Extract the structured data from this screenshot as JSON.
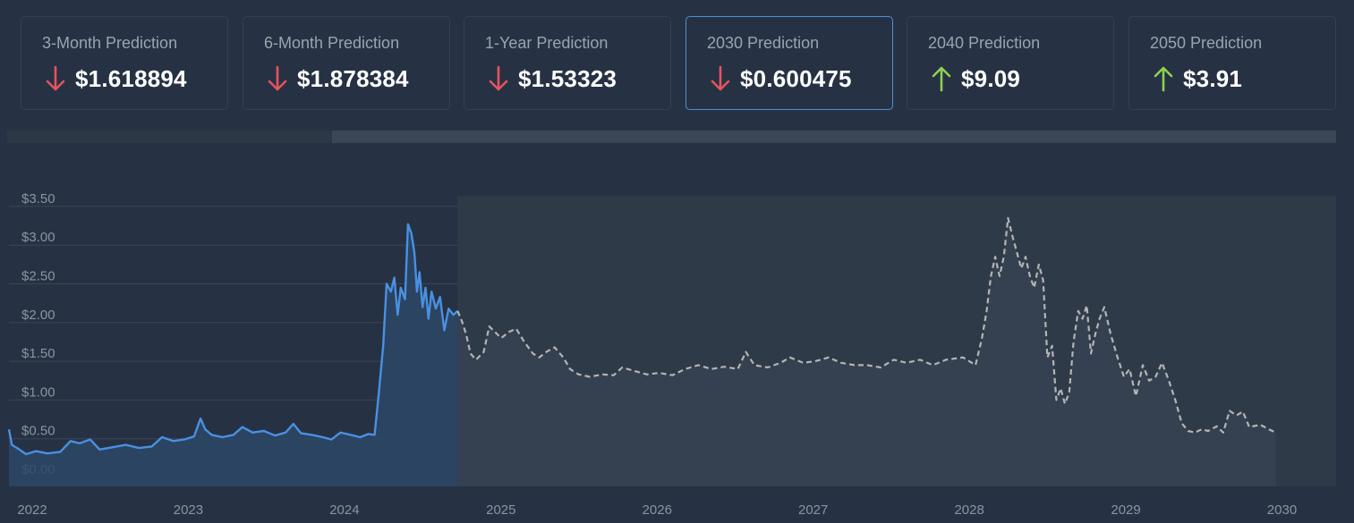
{
  "cards": [
    {
      "title": "3-Month Prediction",
      "value": "$1.618894",
      "trend": "down",
      "active": false
    },
    {
      "title": "6-Month Prediction",
      "value": "$1.878384",
      "trend": "down",
      "active": false
    },
    {
      "title": "1-Year Prediction",
      "value": "$1.53323",
      "trend": "down",
      "active": false
    },
    {
      "title": "2030 Prediction",
      "value": "$0.600475",
      "trend": "down",
      "active": true
    },
    {
      "title": "2040 Prediction",
      "value": "$9.09",
      "trend": "up",
      "active": false
    },
    {
      "title": "2050 Prediction",
      "value": "$3.91",
      "trend": "up",
      "active": false
    }
  ],
  "colors": {
    "background": "#263244",
    "down": "#e5535d",
    "up": "#8fd14f",
    "historical_line": "#4a90e2",
    "prediction_line": "#b4b4b4",
    "active_border": "#4d8fd4",
    "gridline": "#3a4655",
    "label": "#8a949f"
  },
  "chart_data": {
    "type": "line",
    "title": "",
    "xlabel": "",
    "ylabel": "",
    "ylim": [
      0,
      3.5
    ],
    "xlim": [
      "2022-01-01",
      "2030-07-01"
    ],
    "y_ticks": [
      "$0.00",
      "$0.50",
      "$1.00",
      "$1.50",
      "$2.00",
      "$2.50",
      "$3.00",
      "$3.50"
    ],
    "x_ticks": [
      "2022",
      "2023",
      "2024",
      "2025",
      "2026",
      "2027",
      "2028",
      "2029",
      "2030"
    ],
    "grid": true,
    "series": [
      {
        "style": "solid",
        "fill": true,
        "points": [
          [
            "2022-01-01",
            0.62
          ],
          [
            "2022-01-08",
            0.42
          ],
          [
            "2022-01-20",
            0.38
          ],
          [
            "2022-02-10",
            0.3
          ],
          [
            "2022-03-05",
            0.34
          ],
          [
            "2022-04-01",
            0.31
          ],
          [
            "2022-05-01",
            0.33
          ],
          [
            "2022-05-25",
            0.47
          ],
          [
            "2022-06-15",
            0.44
          ],
          [
            "2022-07-10",
            0.49
          ],
          [
            "2022-08-01",
            0.36
          ],
          [
            "2022-09-01",
            0.39
          ],
          [
            "2022-10-01",
            0.42
          ],
          [
            "2022-11-01",
            0.38
          ],
          [
            "2022-12-01",
            0.4
          ],
          [
            "2022-12-25",
            0.52
          ],
          [
            "2023-01-20",
            0.47
          ],
          [
            "2023-02-15",
            0.49
          ],
          [
            "2023-03-10",
            0.53
          ],
          [
            "2023-03-25",
            0.76
          ],
          [
            "2023-04-05",
            0.62
          ],
          [
            "2023-04-20",
            0.55
          ],
          [
            "2023-05-15",
            0.52
          ],
          [
            "2023-06-10",
            0.55
          ],
          [
            "2023-07-01",
            0.65
          ],
          [
            "2023-07-25",
            0.58
          ],
          [
            "2023-08-20",
            0.6
          ],
          [
            "2023-09-15",
            0.54
          ],
          [
            "2023-10-10",
            0.58
          ],
          [
            "2023-10-28",
            0.69
          ],
          [
            "2023-11-15",
            0.57
          ],
          [
            "2023-12-10",
            0.55
          ],
          [
            "2024-01-05",
            0.52
          ],
          [
            "2024-01-25",
            0.49
          ],
          [
            "2024-02-15",
            0.58
          ],
          [
            "2024-03-10",
            0.55
          ],
          [
            "2024-04-01",
            0.52
          ],
          [
            "2024-04-20",
            0.56
          ],
          [
            "2024-05-05",
            0.55
          ],
          [
            "2024-05-15",
            1.1
          ],
          [
            "2024-05-25",
            1.7
          ],
          [
            "2024-06-02",
            2.5
          ],
          [
            "2024-06-12",
            2.4
          ],
          [
            "2024-06-20",
            2.58
          ],
          [
            "2024-06-28",
            2.1
          ],
          [
            "2024-07-05",
            2.45
          ],
          [
            "2024-07-15",
            2.3
          ],
          [
            "2024-07-22",
            3.27
          ],
          [
            "2024-07-30",
            3.15
          ],
          [
            "2024-08-06",
            2.9
          ],
          [
            "2024-08-12",
            2.4
          ],
          [
            "2024-08-18",
            2.65
          ],
          [
            "2024-08-25",
            2.2
          ],
          [
            "2024-09-01",
            2.45
          ],
          [
            "2024-09-08",
            2.05
          ],
          [
            "2024-09-15",
            2.4
          ],
          [
            "2024-09-25",
            2.18
          ],
          [
            "2024-10-05",
            2.33
          ],
          [
            "2024-10-15",
            1.9
          ],
          [
            "2024-10-25",
            2.18
          ],
          [
            "2024-11-05",
            2.1
          ],
          [
            "2024-11-15",
            2.15
          ]
        ]
      },
      {
        "style": "dashed",
        "fill": true,
        "points": [
          [
            "2024-11-15",
            2.15
          ],
          [
            "2024-11-25",
            2.02
          ],
          [
            "2024-12-05",
            1.85
          ],
          [
            "2024-12-15",
            1.6
          ],
          [
            "2024-12-28",
            1.52
          ],
          [
            "2025-01-15",
            1.62
          ],
          [
            "2025-01-28",
            1.95
          ],
          [
            "2025-02-10",
            1.88
          ],
          [
            "2025-02-25",
            1.8
          ],
          [
            "2025-03-15",
            1.88
          ],
          [
            "2025-04-01",
            1.92
          ],
          [
            "2025-04-20",
            1.75
          ],
          [
            "2025-05-10",
            1.6
          ],
          [
            "2025-05-25",
            1.55
          ],
          [
            "2025-06-10",
            1.62
          ],
          [
            "2025-06-30",
            1.68
          ],
          [
            "2025-07-20",
            1.55
          ],
          [
            "2025-08-05",
            1.4
          ],
          [
            "2025-08-25",
            1.33
          ],
          [
            "2025-09-20",
            1.3
          ],
          [
            "2025-10-20",
            1.33
          ],
          [
            "2025-11-15",
            1.32
          ],
          [
            "2025-12-05",
            1.42
          ],
          [
            "2025-12-30",
            1.38
          ],
          [
            "2026-02-01",
            1.33
          ],
          [
            "2026-03-01",
            1.35
          ],
          [
            "2026-04-01",
            1.32
          ],
          [
            "2026-05-01",
            1.4
          ],
          [
            "2026-06-01",
            1.45
          ],
          [
            "2026-07-01",
            1.4
          ],
          [
            "2026-08-01",
            1.43
          ],
          [
            "2026-09-01",
            1.4
          ],
          [
            "2026-09-20",
            1.62
          ],
          [
            "2026-10-10",
            1.45
          ],
          [
            "2026-11-10",
            1.42
          ],
          [
            "2026-12-10",
            1.48
          ],
          [
            "2027-01-01",
            1.55
          ],
          [
            "2027-02-01",
            1.48
          ],
          [
            "2027-03-01",
            1.5
          ],
          [
            "2027-04-01",
            1.55
          ],
          [
            "2027-05-01",
            1.48
          ],
          [
            "2027-06-01",
            1.45
          ],
          [
            "2027-07-01",
            1.45
          ],
          [
            "2027-08-01",
            1.42
          ],
          [
            "2027-09-01",
            1.52
          ],
          [
            "2027-10-01",
            1.48
          ],
          [
            "2027-11-01",
            1.52
          ],
          [
            "2027-12-01",
            1.45
          ],
          [
            "2028-01-01",
            1.52
          ],
          [
            "2028-02-10",
            1.55
          ],
          [
            "2028-03-10",
            1.45
          ],
          [
            "2028-03-25",
            1.8
          ],
          [
            "2028-04-05",
            2.15
          ],
          [
            "2028-04-15",
            2.6
          ],
          [
            "2028-04-25",
            2.85
          ],
          [
            "2028-05-05",
            2.6
          ],
          [
            "2028-05-15",
            2.85
          ],
          [
            "2028-05-25",
            3.35
          ],
          [
            "2028-06-05",
            3.1
          ],
          [
            "2028-06-15",
            2.9
          ],
          [
            "2028-06-25",
            2.7
          ],
          [
            "2028-07-05",
            2.85
          ],
          [
            "2028-07-15",
            2.6
          ],
          [
            "2028-07-25",
            2.45
          ],
          [
            "2028-08-05",
            2.75
          ],
          [
            "2028-08-15",
            2.55
          ],
          [
            "2028-08-25",
            1.55
          ],
          [
            "2028-09-05",
            1.7
          ],
          [
            "2028-09-15",
            1.0
          ],
          [
            "2028-09-25",
            1.15
          ],
          [
            "2028-10-05",
            0.95
          ],
          [
            "2028-10-15",
            1.1
          ],
          [
            "2028-10-25",
            1.75
          ],
          [
            "2028-11-05",
            2.15
          ],
          [
            "2028-11-15",
            2.05
          ],
          [
            "2028-11-25",
            2.22
          ],
          [
            "2028-12-05",
            1.6
          ],
          [
            "2028-12-15",
            1.85
          ],
          [
            "2028-12-25",
            2.05
          ],
          [
            "2029-01-05",
            2.2
          ],
          [
            "2029-01-20",
            1.85
          ],
          [
            "2029-02-05",
            1.55
          ],
          [
            "2029-02-20",
            1.3
          ],
          [
            "2029-03-05",
            1.4
          ],
          [
            "2029-03-20",
            1.05
          ],
          [
            "2029-04-05",
            1.45
          ],
          [
            "2029-04-20",
            1.25
          ],
          [
            "2029-05-05",
            1.3
          ],
          [
            "2029-05-20",
            1.48
          ],
          [
            "2029-06-05",
            1.25
          ],
          [
            "2029-06-20",
            1.0
          ],
          [
            "2029-07-05",
            0.7
          ],
          [
            "2029-07-20",
            0.6
          ],
          [
            "2029-08-05",
            0.58
          ],
          [
            "2029-08-20",
            0.62
          ],
          [
            "2029-09-05",
            0.6
          ],
          [
            "2029-09-25",
            0.66
          ],
          [
            "2029-10-10",
            0.58
          ],
          [
            "2029-10-25",
            0.86
          ],
          [
            "2029-11-10",
            0.8
          ],
          [
            "2029-11-25",
            0.85
          ],
          [
            "2029-12-10",
            0.65
          ],
          [
            "2030-01-05",
            0.68
          ],
          [
            "2030-01-25",
            0.62
          ],
          [
            "2030-02-10",
            0.58
          ]
        ]
      }
    ]
  }
}
